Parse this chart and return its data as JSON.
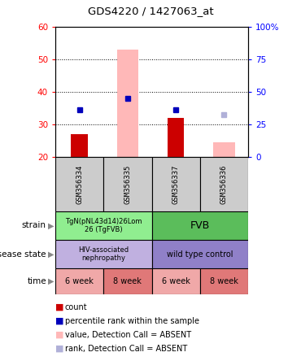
{
  "title": "GDS4220 / 1427063_at",
  "samples": [
    "GSM356334",
    "GSM356335",
    "GSM356337",
    "GSM356336"
  ],
  "ylim_left": [
    20,
    60
  ],
  "ylim_right": [
    0,
    100
  ],
  "yticks_left": [
    20,
    30,
    40,
    50,
    60
  ],
  "yticks_right": [
    0,
    25,
    50,
    75,
    100
  ],
  "ytick_labels_right": [
    "0",
    "25",
    "50",
    "75",
    "100%"
  ],
  "red_bars": [
    27,
    null,
    32,
    null
  ],
  "red_bar_bottom": 20,
  "pink_bars": [
    null,
    53,
    null,
    24.5
  ],
  "blue_squares": [
    34.5,
    38,
    34.5,
    null
  ],
  "lightblue_squares": [
    null,
    null,
    null,
    33
  ],
  "strain_labels": [
    "TgN(pNL43d14)26Lom\n26 (TgFVB)",
    "FVB"
  ],
  "strain_colors": [
    "#90EE90",
    "#5BBD5B"
  ],
  "disease_labels": [
    "HIV-associated\nnephropathy",
    "wild type control"
  ],
  "disease_colors": [
    "#C0B0E0",
    "#9080C8"
  ],
  "time_labels": [
    "6 week",
    "8 week",
    "6 week",
    "8 week"
  ],
  "time_colors": [
    "#F0A8A8",
    "#E07878",
    "#F0A8A8",
    "#E07878"
  ],
  "legend_items": [
    {
      "color": "#CC0000",
      "label": "count"
    },
    {
      "color": "#0000BB",
      "label": "percentile rank within the sample"
    },
    {
      "color": "#FFB8B8",
      "label": "value, Detection Call = ABSENT"
    },
    {
      "color": "#B0B0D8",
      "label": "rank, Detection Call = ABSENT"
    }
  ],
  "row_labels": [
    "strain",
    "disease state",
    "time"
  ],
  "bar_width": 0.35,
  "pink_bar_width": 0.45
}
